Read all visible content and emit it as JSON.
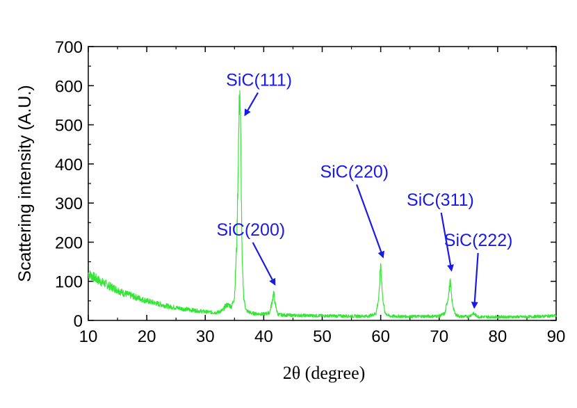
{
  "chart_data": {
    "type": "line",
    "title": "",
    "xlabel": "2θ (degree)",
    "ylabel": "Scattering intensity (A.U.)",
    "xlim": [
      10,
      90
    ],
    "ylim": [
      0,
      700
    ],
    "x_ticks": [
      10,
      20,
      30,
      40,
      50,
      60,
      70,
      80,
      90
    ],
    "y_ticks": [
      0,
      100,
      200,
      300,
      400,
      500,
      600,
      700
    ],
    "grid": false,
    "line_color": "#33e633",
    "annotation_color": "#1a1ae6",
    "series": [
      {
        "name": "",
        "x": [
          10,
          11,
          12,
          13,
          14,
          15,
          16,
          18,
          20,
          22,
          24,
          26,
          28,
          30,
          32,
          33,
          33.5,
          34,
          34.5,
          35,
          35.4,
          35.7,
          35.9,
          36.1,
          36.3,
          36.6,
          37,
          38,
          40,
          41,
          41.4,
          41.7,
          42,
          42.4,
          43,
          45,
          50,
          55,
          58,
          59.2,
          59.7,
          60,
          60.3,
          60.7,
          61.5,
          65,
          70,
          71,
          71.6,
          71.9,
          72.2,
          72.7,
          73.5,
          75,
          75.5,
          75.8,
          76.2,
          76.8,
          80,
          85,
          90
        ],
        "y": [
          120,
          110,
          100,
          93,
          85,
          78,
          70,
          60,
          50,
          42,
          35,
          30,
          26,
          22,
          20,
          26,
          38,
          40,
          35,
          60,
          200,
          460,
          605,
          420,
          150,
          55,
          25,
          18,
          16,
          20,
          45,
          72,
          38,
          16,
          14,
          13,
          12,
          11,
          11,
          18,
          60,
          150,
          65,
          20,
          11,
          10,
          11,
          18,
          65,
          100,
          48,
          16,
          10,
          10,
          14,
          18,
          14,
          9,
          9,
          9,
          12
        ]
      }
    ],
    "annotations": [
      {
        "text": "SiC(111)",
        "x": 36.8,
        "y": 525,
        "label_x": 39.2,
        "label_y": 600
      },
      {
        "text": "SiC(200)",
        "x": 41.9,
        "y": 92,
        "label_x": 37.8,
        "label_y": 217
      },
      {
        "text": "SiC(220)",
        "x": 60.4,
        "y": 162,
        "label_x": 55.5,
        "label_y": 365
      },
      {
        "text": "SiC(311)",
        "x": 72.1,
        "y": 128,
        "label_x": 70.2,
        "label_y": 293
      },
      {
        "text": "SiC(222)",
        "x": 76.0,
        "y": 33,
        "label_x": 76.7,
        "label_y": 190
      }
    ]
  }
}
